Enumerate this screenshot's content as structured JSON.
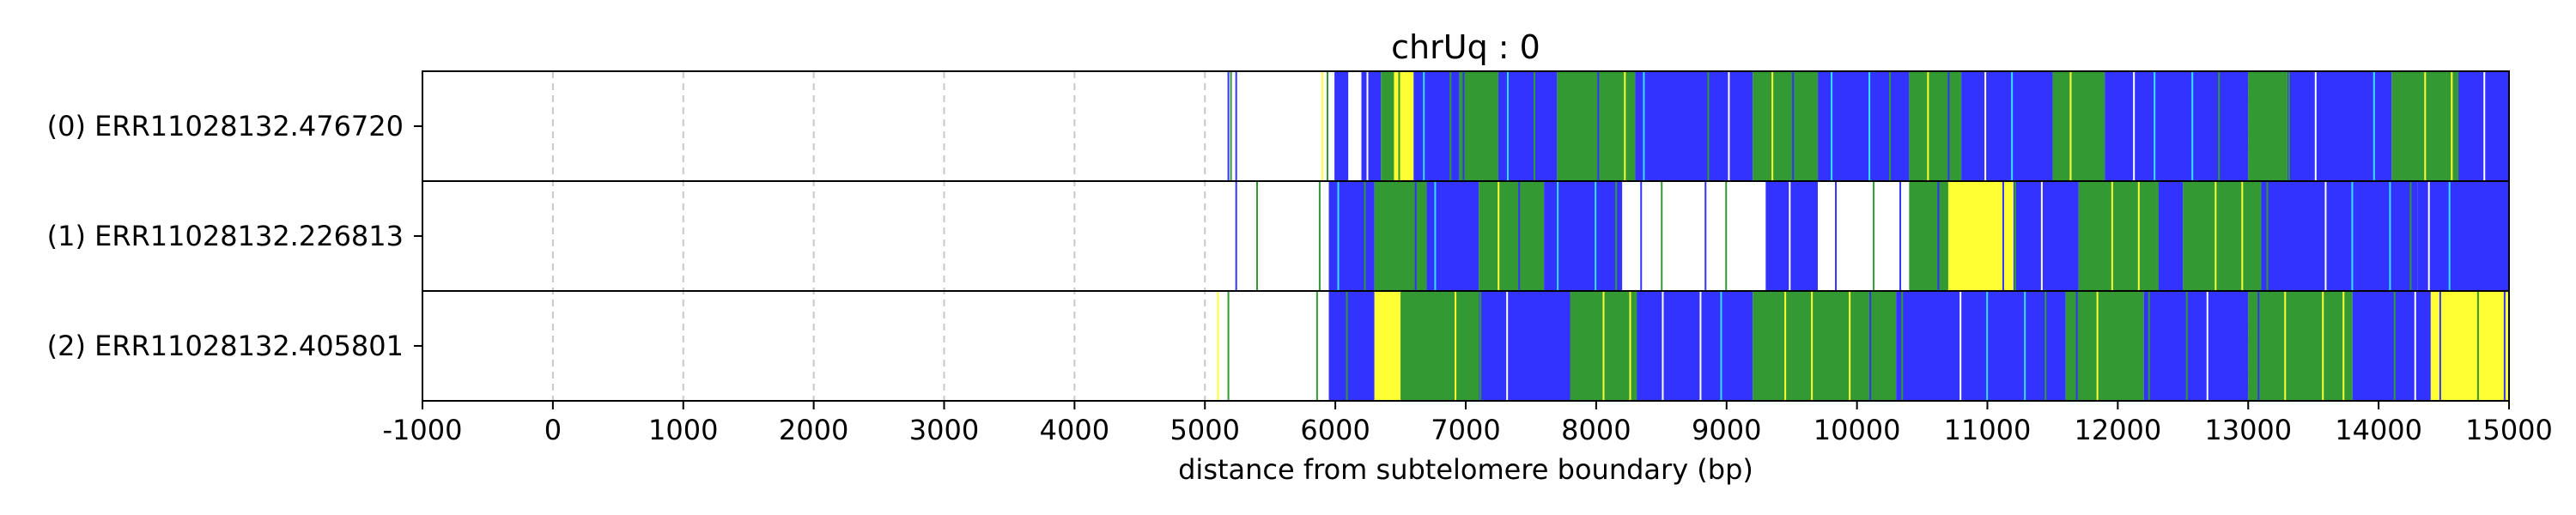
{
  "chart_data": {
    "type": "heatmap",
    "title": "chrUq : 0",
    "xlabel": "distance from subtelomere boundary (bp)",
    "ylabel": "",
    "xlim": [
      -1000,
      15000
    ],
    "x_ticks": [
      -1000,
      0,
      1000,
      2000,
      3000,
      4000,
      5000,
      6000,
      7000,
      8000,
      9000,
      10000,
      11000,
      12000,
      13000,
      14000,
      15000
    ],
    "grid": "vertical dashed at each x tick",
    "colors": {
      "blue": "#3333ff",
      "green": "#339933",
      "yellow": "#ffff33",
      "cyan": "#33e0ff",
      "white": "#ffffff"
    },
    "reads": [
      {
        "label": "(0) ERR11028132.476720",
        "sparse_marks": [
          {
            "x": 5180,
            "color": "blue"
          },
          {
            "x": 5200,
            "color": "green"
          },
          {
            "x": 5240,
            "color": "blue"
          },
          {
            "x": 5900,
            "color": "yellow"
          },
          {
            "x": 5940,
            "color": "green"
          }
        ],
        "segments": [
          {
            "start": 5980,
            "end": 6100,
            "color": "blue"
          },
          {
            "start": 6100,
            "end": 6200,
            "color": "white"
          },
          {
            "start": 6200,
            "end": 6350,
            "color": "blue"
          },
          {
            "start": 6350,
            "end": 6450,
            "color": "green"
          },
          {
            "start": 6450,
            "end": 6600,
            "color": "yellow"
          },
          {
            "start": 6600,
            "end": 6950,
            "color": "blue"
          },
          {
            "start": 6950,
            "end": 7250,
            "color": "green"
          },
          {
            "start": 7250,
            "end": 7700,
            "color": "blue"
          },
          {
            "start": 7700,
            "end": 8300,
            "color": "green"
          },
          {
            "start": 8300,
            "end": 9200,
            "color": "blue"
          },
          {
            "start": 9200,
            "end": 9700,
            "color": "green"
          },
          {
            "start": 9700,
            "end": 10400,
            "color": "blue"
          },
          {
            "start": 10400,
            "end": 10800,
            "color": "green"
          },
          {
            "start": 10800,
            "end": 11500,
            "color": "blue"
          },
          {
            "start": 11500,
            "end": 11900,
            "color": "green"
          },
          {
            "start": 11900,
            "end": 13000,
            "color": "blue"
          },
          {
            "start": 13000,
            "end": 13300,
            "color": "green"
          },
          {
            "start": 13300,
            "end": 14100,
            "color": "blue"
          },
          {
            "start": 14100,
            "end": 14600,
            "color": "green"
          },
          {
            "start": 14600,
            "end": 15000,
            "color": "blue"
          }
        ]
      },
      {
        "label": "(1) ERR11028132.226813",
        "sparse_marks": [
          {
            "x": 5240,
            "color": "blue"
          },
          {
            "x": 5400,
            "color": "green"
          },
          {
            "x": 5880,
            "color": "green"
          }
        ],
        "segments": [
          {
            "start": 5950,
            "end": 6300,
            "color": "blue"
          },
          {
            "start": 6300,
            "end": 6700,
            "color": "green"
          },
          {
            "start": 6700,
            "end": 7100,
            "color": "blue"
          },
          {
            "start": 7100,
            "end": 7600,
            "color": "green"
          },
          {
            "start": 7600,
            "end": 8200,
            "color": "blue"
          },
          {
            "start": 8200,
            "end": 9300,
            "color": "white"
          },
          {
            "start": 9300,
            "end": 9700,
            "color": "blue"
          },
          {
            "start": 9700,
            "end": 10400,
            "color": "white"
          },
          {
            "start": 10400,
            "end": 10700,
            "color": "green"
          },
          {
            "start": 10700,
            "end": 11200,
            "color": "yellow"
          },
          {
            "start": 11200,
            "end": 11700,
            "color": "blue"
          },
          {
            "start": 11700,
            "end": 12300,
            "color": "green"
          },
          {
            "start": 12300,
            "end": 12500,
            "color": "blue"
          },
          {
            "start": 12500,
            "end": 13100,
            "color": "green"
          },
          {
            "start": 13100,
            "end": 14300,
            "color": "blue"
          },
          {
            "start": 14300,
            "end": 15000,
            "color": "blue"
          }
        ]
      },
      {
        "label": "(2) ERR11028132.405801",
        "sparse_marks": [
          {
            "x": 5100,
            "color": "yellow"
          },
          {
            "x": 5180,
            "color": "green"
          },
          {
            "x": 5860,
            "color": "green"
          }
        ],
        "segments": [
          {
            "start": 5950,
            "end": 6300,
            "color": "blue"
          },
          {
            "start": 6300,
            "end": 6500,
            "color": "yellow"
          },
          {
            "start": 6500,
            "end": 7100,
            "color": "green"
          },
          {
            "start": 7100,
            "end": 7800,
            "color": "blue"
          },
          {
            "start": 7800,
            "end": 8300,
            "color": "green"
          },
          {
            "start": 8300,
            "end": 9200,
            "color": "blue"
          },
          {
            "start": 9200,
            "end": 10300,
            "color": "green"
          },
          {
            "start": 10300,
            "end": 11600,
            "color": "blue"
          },
          {
            "start": 11600,
            "end": 12200,
            "color": "green"
          },
          {
            "start": 12200,
            "end": 13000,
            "color": "blue"
          },
          {
            "start": 13000,
            "end": 13800,
            "color": "green"
          },
          {
            "start": 13800,
            "end": 14400,
            "color": "blue"
          },
          {
            "start": 14400,
            "end": 15000,
            "color": "yellow"
          }
        ]
      }
    ]
  }
}
